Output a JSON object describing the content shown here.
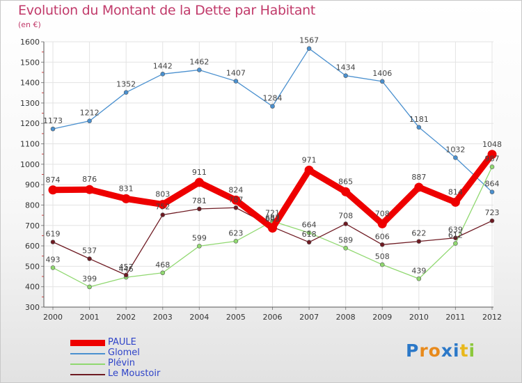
{
  "chart_data": {
    "type": "line",
    "title": "Evolution du Montant de la Dette par Habitant",
    "unit_label": "(en €)",
    "categories": [
      "2000",
      "2001",
      "2002",
      "2003",
      "2004",
      "2005",
      "2006",
      "2007",
      "2008",
      "2009",
      "2010",
      "2011",
      "2012"
    ],
    "y_ticks": [
      "300",
      "400",
      "500",
      "600",
      "700",
      "800",
      "900",
      "1000",
      "1100",
      "1200",
      "1300",
      "1400",
      "1500",
      "1600"
    ],
    "ylim": [
      300,
      1600
    ],
    "grid": true,
    "series": [
      {
        "name": "Glomel",
        "color": "#4a90cf",
        "emphasis": false,
        "values": [
          1173,
          1212,
          1352,
          1442,
          1462,
          1407,
          1284,
          1567,
          1434,
          1406,
          1181,
          1032,
          864
        ],
        "labels": [
          "1173",
          "1212",
          "1352",
          "1442",
          "1462",
          "1407",
          "1284",
          "1567",
          "1434",
          "1406",
          "1181",
          "1032",
          "864"
        ]
      },
      {
        "name": "Plévin",
        "color": "#90d870",
        "emphasis": false,
        "values": [
          493,
          399,
          446,
          468,
          599,
          623,
          721,
          664,
          589,
          508,
          439,
          612,
          987
        ],
        "labels": [
          "493",
          "399",
          "446",
          "468",
          "599",
          "623",
          "721",
          "664",
          "589",
          "508",
          "439",
          "612",
          "987"
        ]
      },
      {
        "name": "Le Moustoir",
        "color": "#6e1a22",
        "emphasis": false,
        "values": [
          619,
          537,
          457,
          752,
          781,
          787,
          693,
          618,
          708,
          606,
          622,
          639,
          723
        ],
        "labels": [
          "619",
          "537",
          "457",
          "752",
          "781",
          "787",
          "693",
          "618",
          "708",
          "606",
          "622",
          "639",
          "723"
        ]
      },
      {
        "name": "PAULE",
        "color": "#ee0000",
        "emphasis": true,
        "values": [
          874,
          876,
          831,
          803,
          911,
          824,
          687,
          971,
          865,
          708,
          887,
          814,
          1048
        ],
        "labels": [
          "874",
          "876",
          "831",
          "803",
          "911",
          "824",
          "687",
          "971",
          "865",
          "708",
          "887",
          "814",
          "1048"
        ]
      }
    ]
  },
  "legend": {
    "items": [
      {
        "name": "PAULE",
        "color": "#ee0000",
        "emphasis": true
      },
      {
        "name": "Glomel",
        "color": "#4a90cf",
        "emphasis": false
      },
      {
        "name": "Plévin",
        "color": "#90d870",
        "emphasis": false
      },
      {
        "name": "Le Moustoir",
        "color": "#6e1a22",
        "emphasis": false
      }
    ]
  },
  "brand": {
    "letters": [
      "P",
      "r",
      "o",
      "x",
      "i",
      "t",
      "i"
    ],
    "colors": [
      "#2b78c8",
      "#e88a1c",
      "#e88a1c",
      "#2b78c8",
      "#2b78c8",
      "#e8b81c",
      "#8cc83c"
    ]
  }
}
